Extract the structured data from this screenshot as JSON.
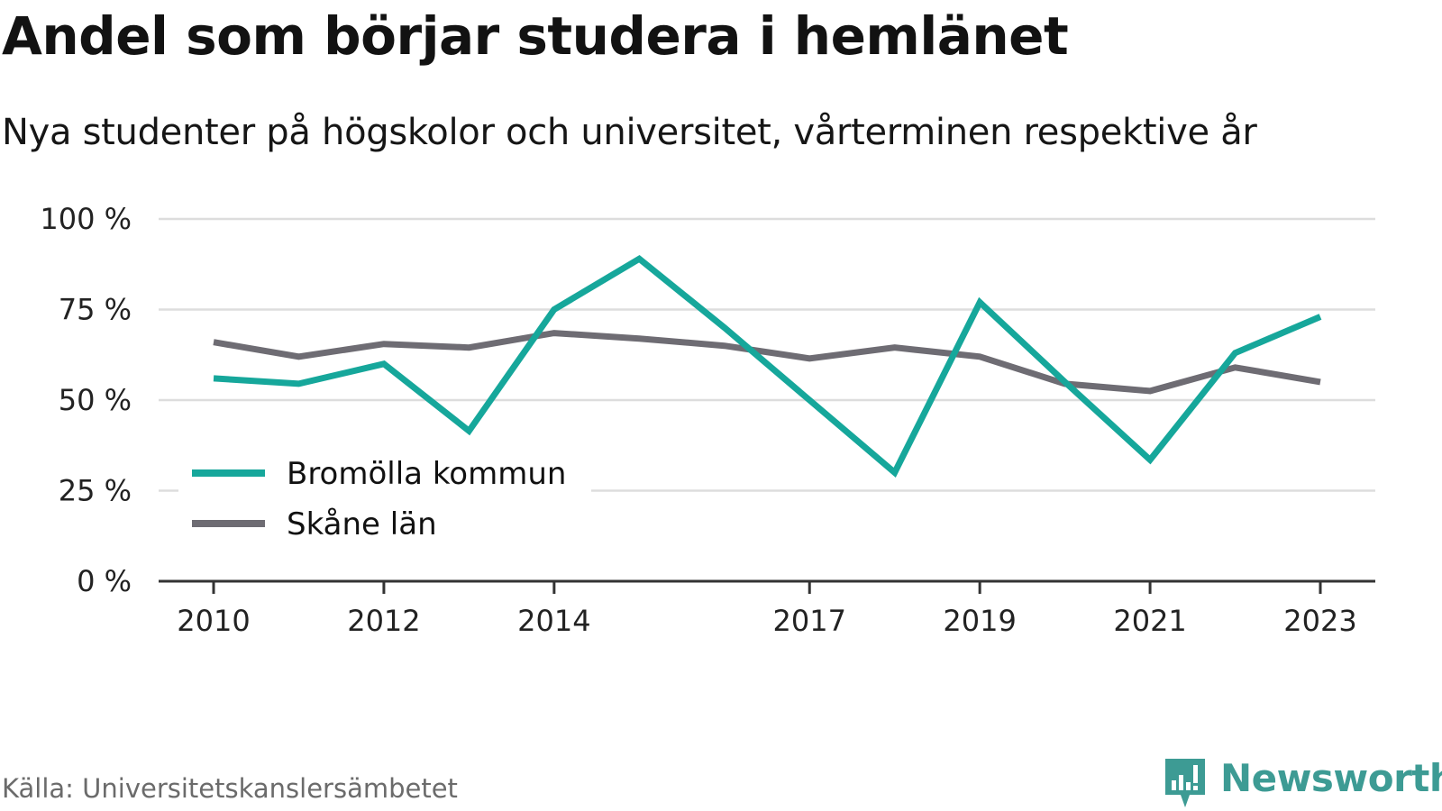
{
  "header": {
    "title": "Andel som börjar studera i hemlänet",
    "subtitle": "Nya studenter på högskolor och universitet, vårterminen respektive år"
  },
  "footer": {
    "source": "Källa: Universitetskanslersämbetet",
    "logo_text": "Newsworthy",
    "logo_icon": "bar-chart-speech-bubble-icon",
    "logo_color": "#3d9b94"
  },
  "chart_data": {
    "type": "line",
    "title": "Andel som börjar studera i hemlänet",
    "subtitle": "Nya studenter på högskolor och universitet, vårterminen respektive år",
    "xlabel": "",
    "ylabel": "",
    "x": [
      2010,
      2011,
      2012,
      2013,
      2014,
      2015,
      2016,
      2017,
      2018,
      2019,
      2020,
      2021,
      2022,
      2023
    ],
    "x_tick_labels": [
      "2010",
      "2012",
      "2014",
      "2017",
      "2019",
      "2021",
      "2023"
    ],
    "y_tick_labels": [
      "0 %",
      "25 %",
      "50 %",
      "75 %",
      "100 %"
    ],
    "y_ticks": [
      0,
      25,
      50,
      75,
      100
    ],
    "ylim": [
      0,
      100
    ],
    "grid": true,
    "legend_position": "bottom-left",
    "series": [
      {
        "name": "Bromölla kommun",
        "color": "#16a79b",
        "values": [
          56,
          54.5,
          60,
          41.5,
          75,
          89,
          70,
          50,
          30,
          77,
          55,
          33.5,
          63,
          73
        ]
      },
      {
        "name": "Skåne län",
        "color": "#6e6c73",
        "values": [
          66,
          62,
          65.5,
          64.5,
          68.5,
          67,
          65,
          61.5,
          64.5,
          62,
          54.5,
          52.5,
          59,
          55
        ]
      }
    ]
  }
}
